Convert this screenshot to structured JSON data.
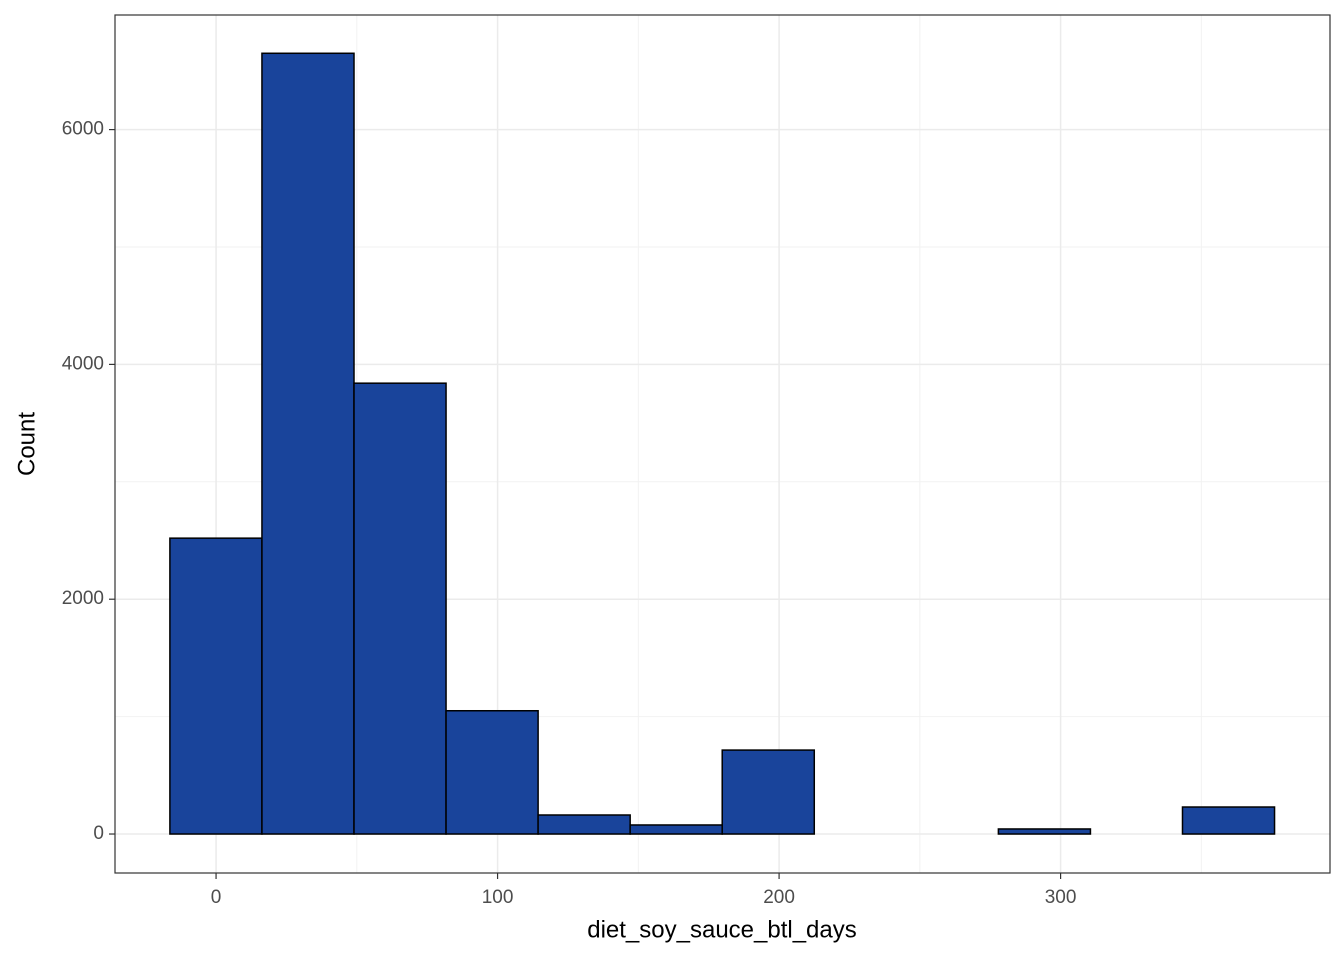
{
  "chart_data": {
    "type": "histogram",
    "x_label": "diet_soy_sauce_btl_days",
    "y_label": "Count",
    "bins": [
      -16.4,
      16.3,
      49.0,
      81.7,
      114.4,
      147.1,
      179.8,
      212.5,
      245.2,
      277.9,
      310.6,
      343.3,
      376.0
    ],
    "counts": [
      2520,
      6650,
      3840,
      1050,
      162,
      77,
      715,
      0,
      0,
      43,
      0,
      230
    ],
    "color": "#19449b",
    "edge_color": "#000000",
    "xlim": [
      -35.9,
      395.7
    ],
    "xticks": [
      0,
      100,
      200,
      300
    ],
    "x_minor_ticks": [
      50,
      150,
      250,
      350
    ],
    "ylim": [
      -332,
      6976
    ],
    "yticks": [
      0,
      2000,
      4000,
      6000
    ],
    "y_minor_ticks": [
      1000,
      3000,
      5000
    ],
    "grid": true
  }
}
